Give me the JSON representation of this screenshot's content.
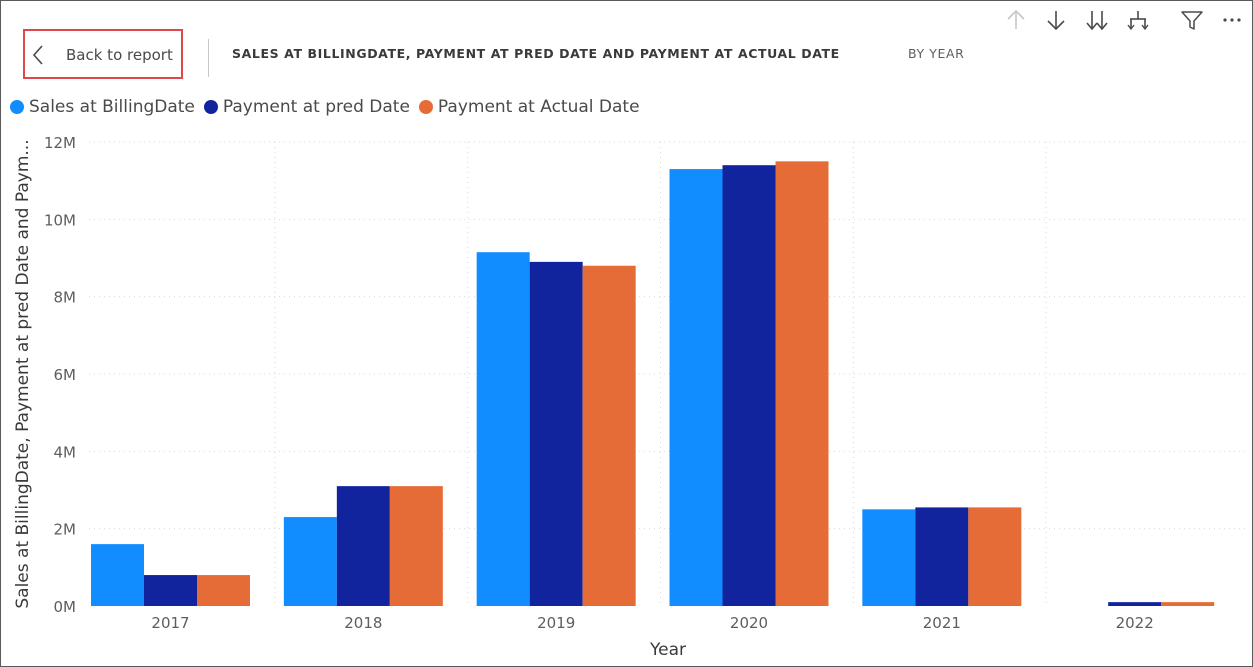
{
  "header": {
    "back_label": "Back to report",
    "title": "SALES AT BILLINGDATE, PAYMENT AT PRED DATE AND PAYMENT AT ACTUAL DATE",
    "subtitle": "BY YEAR"
  },
  "toolbar": {
    "icons": [
      "drill-up-icon",
      "drill-down-icon",
      "expand-all-down-icon",
      "expand-next-level-icon",
      "filter-icon",
      "more-options-icon"
    ]
  },
  "colors": {
    "sales": "#118dff",
    "pred": "#12239e",
    "actual": "#e66c37",
    "grid": "#d9d9d9",
    "axis_text": "#605e5c"
  },
  "chart_data": {
    "type": "bar",
    "title": "SALES AT BILLINGDATE, PAYMENT AT PRED DATE AND PAYMENT AT ACTUAL DATE BY YEAR",
    "xlabel": "Year",
    "ylabel": "Sales at BillingDate, Payment at pred Date and Paym...",
    "categories": [
      "2017",
      "2018",
      "2019",
      "2020",
      "2021",
      "2022"
    ],
    "series": [
      {
        "name": "Sales at BillingDate",
        "color": "#118dff",
        "values": [
          1.6,
          2.3,
          9.15,
          11.3,
          2.5,
          0
        ]
      },
      {
        "name": "Payment at pred Date",
        "color": "#12239e",
        "values": [
          0.8,
          3.1,
          8.9,
          11.4,
          2.55,
          0.1
        ]
      },
      {
        "name": "Payment at Actual Date",
        "color": "#e66c37",
        "values": [
          0.8,
          3.1,
          8.8,
          11.5,
          2.55,
          0.1
        ]
      }
    ],
    "unit": "M",
    "ylim": [
      0,
      12
    ],
    "yticks": [
      "0M",
      "2M",
      "4M",
      "6M",
      "8M",
      "10M",
      "12M"
    ],
    "grid": true,
    "legend_position": "top-left"
  }
}
